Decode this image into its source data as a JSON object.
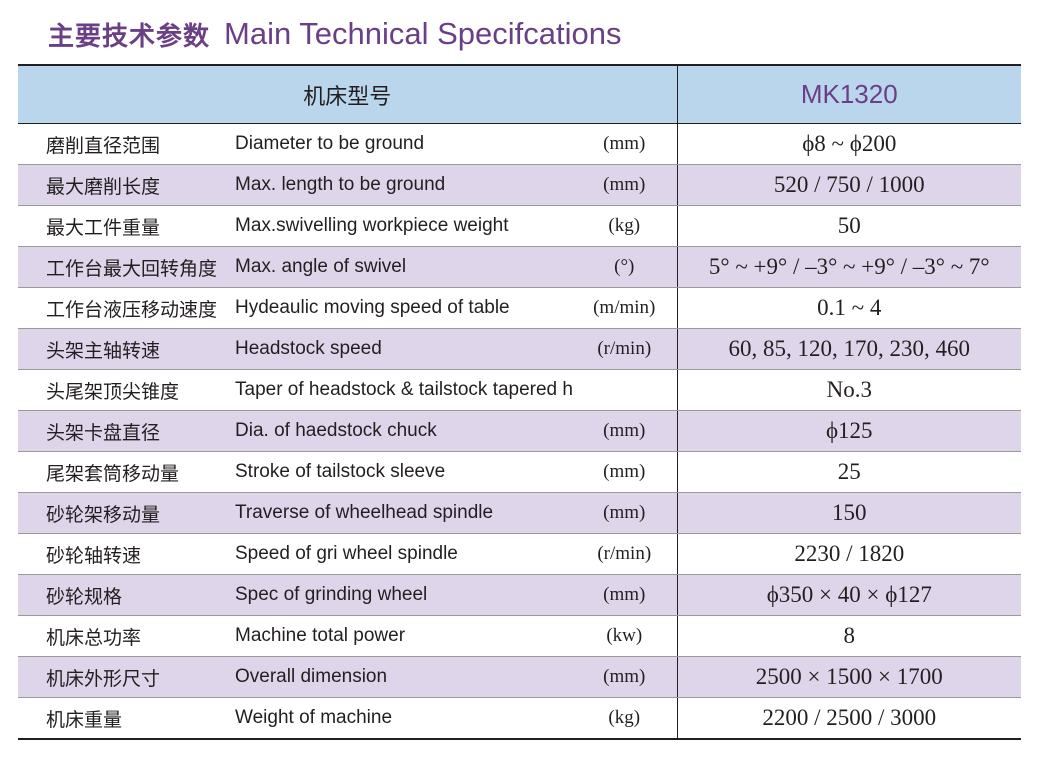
{
  "title": {
    "cn": "主要技术参数",
    "en": "Main Technical Specifcations"
  },
  "table": {
    "header_label": "机床型号",
    "model": "MK1320",
    "rows": [
      {
        "cn": "磨削直径范围",
        "en": "Diameter to be ground",
        "unit": "(mm)",
        "value": "ϕ8 ~ ϕ200"
      },
      {
        "cn": "最大磨削长度",
        "en": "Max. length to be ground",
        "unit": "(mm)",
        "value": "520 / 750 / 1000"
      },
      {
        "cn": "最大工件重量",
        "en": "Max.swivelling workpiece weight",
        "unit": "(kg)",
        "value": "50"
      },
      {
        "cn": "工作台最大回转角度",
        "en": "Max. angle of swivel",
        "unit": "(°)",
        "value": "5° ~ +9° / –3° ~ +9° / –3° ~ 7°"
      },
      {
        "cn": "工作台液压移动速度",
        "en": "Hydeaulic moving speed of table",
        "unit": "(m/min)",
        "value": "0.1 ~ 4"
      },
      {
        "cn": "头架主轴转速",
        "en": "Headstock speed",
        "unit": "(r/min)",
        "value": "60, 85, 120, 170, 230, 460"
      },
      {
        "cn": "头尾架顶尖锥度",
        "en": "Taper of headstock & tailstock tapered hole",
        "unit": "",
        "value": "No.3"
      },
      {
        "cn": "头架卡盘直径",
        "en": "Dia. of haedstock chuck",
        "unit": "(mm)",
        "value": "ϕ125"
      },
      {
        "cn": "尾架套筒移动量",
        "en": "Stroke of tailstock sleeve",
        "unit": "(mm)",
        "value": "25"
      },
      {
        "cn": "砂轮架移动量",
        "en": "Traverse of wheelhead spindle",
        "unit": "(mm)",
        "value": "150"
      },
      {
        "cn": "砂轮轴转速",
        "en": "Speed of gri wheel spindle",
        "unit": "(r/min)",
        "value": "2230 / 1820"
      },
      {
        "cn": "砂轮规格",
        "en": "Spec of grinding wheel",
        "unit": "(mm)",
        "value": "ϕ350 × 40 × ϕ127"
      },
      {
        "cn": "机床总功率",
        "en": "Machine total power",
        "unit": "(kw)",
        "value": "8"
      },
      {
        "cn": "机床外形尺寸",
        "en": "Overall dimension",
        "unit": "(mm)",
        "value": "2500 × 1500 × 1700"
      },
      {
        "cn": "机床重量",
        "en": "Weight of machine",
        "unit": "(kg)",
        "value": "2200 / 2500 / 3000"
      }
    ]
  },
  "colors": {
    "accent_purple": "#6b3f86",
    "header_blue": "#b9d6ec",
    "row_lavender": "#ded5ea",
    "text": "#231f20"
  }
}
